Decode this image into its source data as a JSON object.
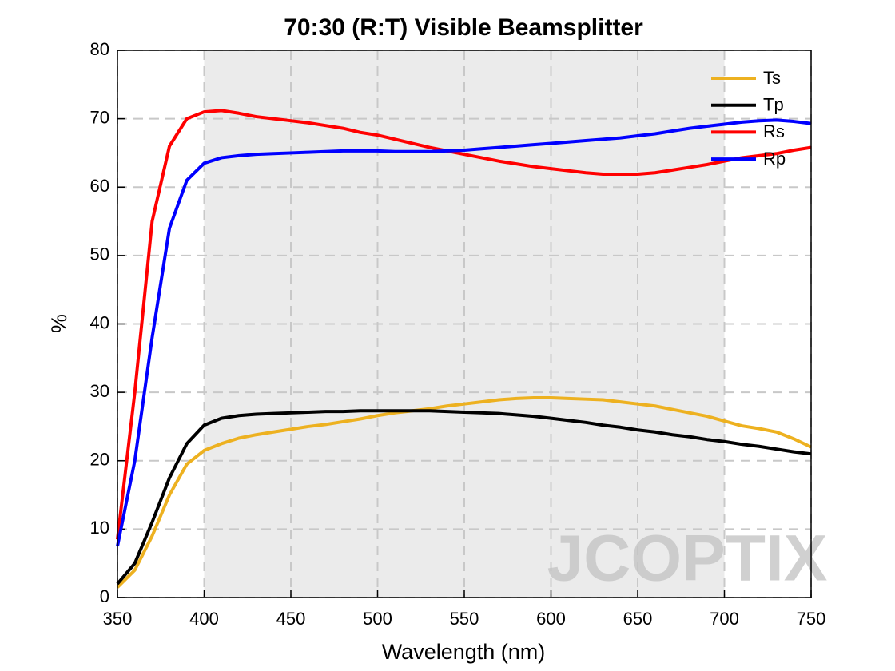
{
  "chart_data": {
    "type": "line",
    "title": "70:30 (R:T) Visible Beamsplitter",
    "x_label": "Wavelength (nm)",
    "y_label": "%",
    "watermark": "JCOPTIX",
    "x": [
      350,
      360,
      370,
      380,
      390,
      400,
      410,
      420,
      430,
      440,
      450,
      460,
      470,
      480,
      490,
      500,
      510,
      520,
      530,
      540,
      550,
      560,
      570,
      580,
      590,
      600,
      610,
      620,
      630,
      640,
      650,
      660,
      670,
      680,
      690,
      700,
      710,
      720,
      730,
      740,
      750
    ],
    "series": [
      {
        "name": "Ts",
        "color": "#edb120",
        "values": [
          1.5,
          4,
          9,
          15,
          19.5,
          21.5,
          22.5,
          23.3,
          23.8,
          24.2,
          24.6,
          25,
          25.3,
          25.7,
          26.1,
          26.6,
          27,
          27.3,
          27.6,
          28,
          28.3,
          28.6,
          28.9,
          29.1,
          29.2,
          29.2,
          29.1,
          29,
          28.9,
          28.6,
          28.3,
          28,
          27.5,
          27,
          26.5,
          25.8,
          25.1,
          24.7,
          24.2,
          23.2,
          22
        ]
      },
      {
        "name": "Tp",
        "color": "#000000",
        "values": [
          2,
          5,
          11,
          17.5,
          22.5,
          25.2,
          26.2,
          26.6,
          26.8,
          26.9,
          27,
          27.1,
          27.2,
          27.2,
          27.3,
          27.3,
          27.3,
          27.3,
          27.3,
          27.2,
          27.1,
          27,
          26.9,
          26.7,
          26.5,
          26.2,
          25.9,
          25.6,
          25.2,
          24.9,
          24.5,
          24.2,
          23.8,
          23.5,
          23.1,
          22.8,
          22.4,
          22.1,
          21.7,
          21.3,
          21
        ]
      },
      {
        "name": "Rs",
        "color": "#ff0000",
        "values": [
          8.5,
          30,
          55,
          66,
          70,
          71,
          71.2,
          70.8,
          70.3,
          70,
          69.7,
          69.4,
          69,
          68.6,
          68,
          67.6,
          67,
          66.4,
          65.8,
          65.3,
          64.8,
          64.3,
          63.8,
          63.4,
          63,
          62.7,
          62.4,
          62.1,
          61.9,
          61.9,
          61.9,
          62.1,
          62.5,
          62.9,
          63.3,
          63.8,
          64.3,
          64.6,
          64.9,
          65.4,
          65.8
        ]
      },
      {
        "name": "Rp",
        "color": "#0000ff",
        "values": [
          7.5,
          20,
          38,
          54,
          61,
          63.5,
          64.3,
          64.6,
          64.8,
          64.9,
          65,
          65.1,
          65.2,
          65.3,
          65.3,
          65.3,
          65.2,
          65.2,
          65.2,
          65.3,
          65.4,
          65.6,
          65.8,
          66,
          66.2,
          66.4,
          66.6,
          66.8,
          67,
          67.2,
          67.5,
          67.8,
          68.2,
          68.6,
          68.9,
          69.2,
          69.5,
          69.7,
          69.8,
          69.6,
          69.3
        ]
      }
    ],
    "xlim": [
      350,
      750
    ],
    "xticks": [
      350,
      400,
      450,
      500,
      550,
      600,
      650,
      700,
      750
    ],
    "ylim": [
      0,
      80
    ],
    "yticks": [
      0,
      10,
      20,
      30,
      40,
      50,
      60,
      70,
      80
    ],
    "shaded_range": [
      400,
      700
    ],
    "grid": true,
    "legend": "upper right"
  }
}
